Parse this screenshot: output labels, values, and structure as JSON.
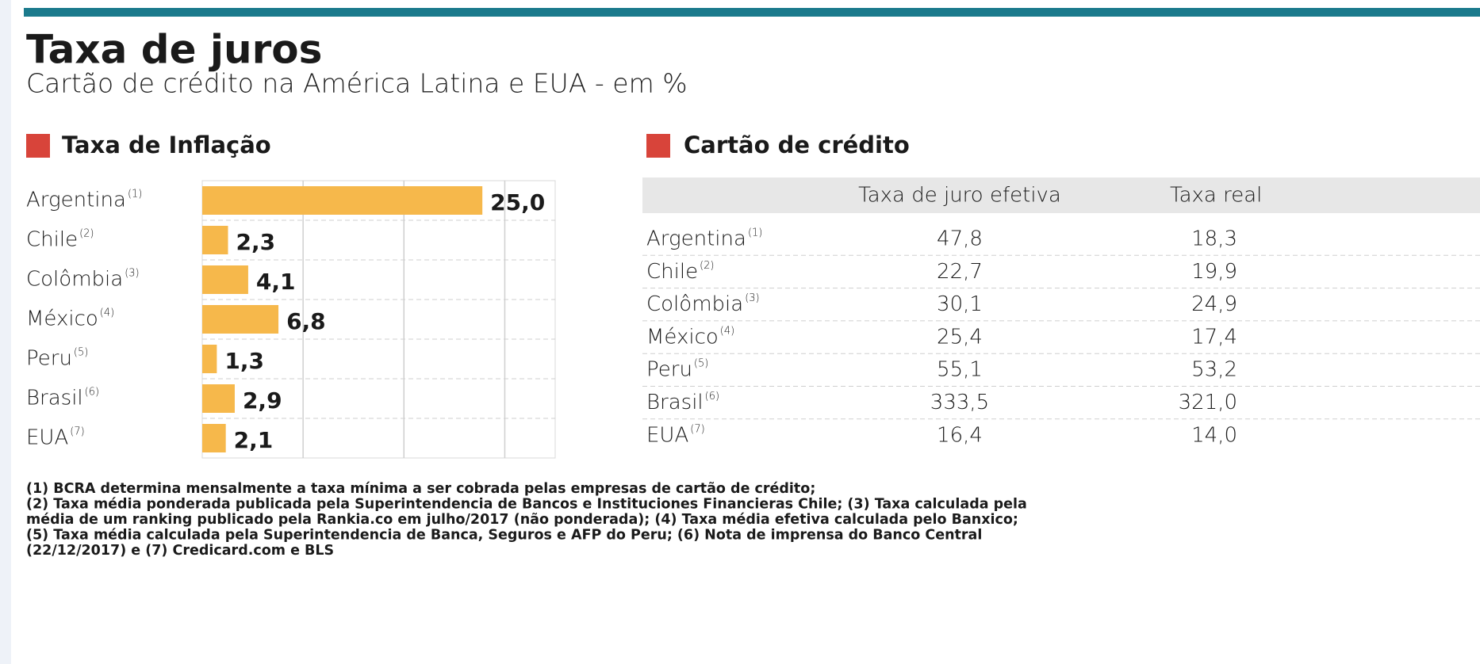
{
  "title": "Taxa de juros",
  "subtitle": "Cartão de crédito na América Latina e EUA - em %",
  "chart_data": {
    "type": "bar",
    "orientation": "horizontal",
    "title": "Taxa de Inflação",
    "categories": [
      "Argentina",
      "Chile",
      "Colômbia",
      "México",
      "Peru",
      "Brasil",
      "EUA"
    ],
    "category_notes": [
      "(1)",
      "(2)",
      "(3)",
      "(4)",
      "(5)",
      "(6)",
      "(7)"
    ],
    "values": [
      25.0,
      2.3,
      4.1,
      6.8,
      1.3,
      2.9,
      2.1
    ],
    "value_labels": [
      "25,0",
      "2,3",
      "4,1",
      "6,8",
      "1,3",
      "2,9",
      "2,1"
    ],
    "color": "#f6b84b",
    "xlim": [
      0,
      31.5
    ],
    "xticks": [
      9,
      18,
      27
    ],
    "grid": true,
    "tick_labels": false
  },
  "table": {
    "title": "Cartão de crédito",
    "columns": [
      "Taxa de juro efetiva",
      "Taxa real"
    ],
    "rows": [
      {
        "label": "Argentina",
        "note": "(1)",
        "values": [
          "47,8",
          "18,3"
        ]
      },
      {
        "label": "Chile",
        "note": "(2)",
        "values": [
          "22,7",
          "19,9"
        ]
      },
      {
        "label": "Colômbia",
        "note": "(3)",
        "values": [
          "30,1",
          "24,9"
        ]
      },
      {
        "label": "México",
        "note": "(4)",
        "values": [
          "25,4",
          "17,4"
        ]
      },
      {
        "label": "Peru",
        "note": "(5)",
        "values": [
          "55,1",
          "53,2"
        ]
      },
      {
        "label": "Brasil",
        "note": "(6)",
        "values": [
          "333,5",
          "321,0"
        ]
      },
      {
        "label": "EUA",
        "note": "(7)",
        "values": [
          "16,4",
          "14,0"
        ]
      }
    ]
  },
  "footnotes": [
    "(1) BCRA determina mensalmente a taxa mínima a ser cobrada pelas empresas de cartão de crédito;",
    "(2) Taxa média ponderada publicada pela Superintendencia de Bancos e Instituciones Financieras Chile; (3) Taxa calculada pela",
    "média de um ranking publicado pela Rankia.co em julho/2017 (não ponderada); (4) Taxa média efetiva calculada pelo Banxico;",
    "(5) Taxa média calculada pela Superintendencia de Banca, Seguros e AFP do Peru; (6) Nota de imprensa do Banco Central",
    "(22/12/2017) e (7) Credicard.com e BLS"
  ]
}
